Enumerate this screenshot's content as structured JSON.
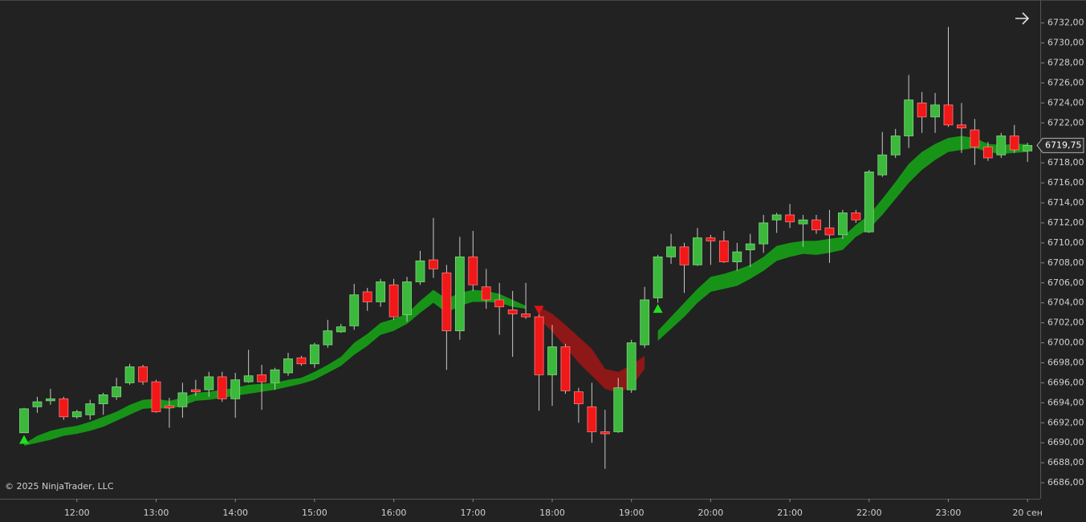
{
  "chart_data": {
    "type": "candlestick",
    "copyright": "© 2025 NinjaTrader, LLC",
    "categories": [
      null,
      null,
      null,
      null,
      "12:00",
      null,
      null,
      null,
      null,
      null,
      "13:00",
      null,
      null,
      null,
      null,
      null,
      "14:00",
      null,
      null,
      null,
      null,
      null,
      "15:00",
      null,
      null,
      null,
      null,
      null,
      "16:00",
      null,
      null,
      null,
      null,
      null,
      "17:00",
      null,
      null,
      null,
      null,
      null,
      "18:00",
      null,
      null,
      null,
      null,
      null,
      "19:00",
      null,
      null,
      null,
      null,
      null,
      "20:00",
      null,
      null,
      null,
      null,
      null,
      "21:00",
      null,
      null,
      null,
      null,
      null,
      "22:00",
      null,
      null,
      null,
      null,
      null,
      "23:00",
      null,
      null,
      null,
      null,
      null,
      "20 сен"
    ],
    "open": [
      6691,
      6693.6,
      6694.2,
      6694.4,
      6692.6,
      6692.8,
      6693.9,
      6694.6,
      6696,
      6697.6,
      6696.1,
      6693.7,
      6693.6,
      6695.3,
      6695.3,
      6696.6,
      6694.4,
      6696.1,
      6696.8,
      6696,
      6697,
      6698.5,
      6697.9,
      6699.8,
      6701.1,
      6701.7,
      6705.1,
      6704.1,
      6705.8,
      6702.8,
      6706.1,
      6708.3,
      6707,
      6701.2,
      6708.6,
      6705.6,
      6704.3,
      6703.3,
      6702.9,
      6702.6,
      6696.8,
      6699.6,
      6695.1,
      6693.6,
      6691.1,
      6691.1,
      6695.3,
      6699.8,
      6704.5,
      6708.6,
      6709.6,
      6707.8,
      6710.5,
      6710.2,
      6708.1,
      6709.3,
      6709.9,
      6712.3,
      6712.8,
      6711.9,
      6712.3,
      6711.5,
      6710.8,
      6713,
      6711.1,
      6716.8,
      6718.8,
      6720.7,
      6724,
      6722.6,
      6723.8,
      6721.8,
      6721.3,
      6719.6,
      6718.8,
      6720.7,
      6719.2
    ],
    "high": [
      6693.5,
      6694.6,
      6695.4,
      6694.6,
      6693.3,
      6694.3,
      6695,
      6696.5,
      6697.9,
      6697.8,
      6696.3,
      6694.5,
      6696,
      6696.3,
      6697.1,
      6697.1,
      6697,
      6699.3,
      6697.8,
      6697.5,
      6699,
      6698.7,
      6700,
      6702.3,
      6701.9,
      6705.9,
      6705.5,
      6706.4,
      6706.4,
      6706.6,
      6709.2,
      6712.5,
      6707.8,
      6710.6,
      6711.2,
      6707.4,
      6706,
      6705.2,
      6706,
      6702.9,
      6701.8,
      6699.9,
      6695.5,
      6696,
      6693.3,
      6696.5,
      6700.3,
      6705.6,
      6708.8,
      6710.9,
      6710,
      6711.5,
      6710.8,
      6711.2,
      6710,
      6710.9,
      6712.8,
      6713,
      6713.9,
      6712.8,
      6712.8,
      6713.3,
      6713.3,
      6713.3,
      6717.3,
      6721.1,
      6721.4,
      6726.8,
      6725.1,
      6725,
      6731.6,
      6724,
      6722.4,
      6720.1,
      6721,
      6721.8,
      6720
    ],
    "low": [
      6691,
      6693,
      6693.8,
      6692.3,
      6692.4,
      6692.3,
      6692.8,
      6694.3,
      6695.8,
      6695.8,
      6693,
      6691.5,
      6692.5,
      6694.7,
      6694.6,
      6694.1,
      6692.5,
      6696,
      6693.3,
      6695.3,
      6696.7,
      6697.7,
      6697.5,
      6699.5,
      6701,
      6701.3,
      6703.2,
      6703.6,
      6702.3,
      6702.1,
      6705.8,
      6706.5,
      6697.3,
      6700.3,
      6705.2,
      6703.4,
      6700.8,
      6698.6,
      6702.4,
      6693.2,
      6693.7,
      6694.9,
      6692,
      6690,
      6687.4,
      6691,
      6695,
      6699.5,
      6704,
      6707.9,
      6705,
      6707.7,
      6707.8,
      6708,
      6707.2,
      6707.6,
      6709,
      6711,
      6711.5,
      6709.6,
      6710.9,
      6708,
      6710.4,
      6712,
      6711,
      6716.6,
      6718.5,
      6719.5,
      6721,
      6721,
      6721.6,
      6719,
      6717.8,
      6718.2,
      6718.5,
      6719,
      6718.1
    ],
    "close": [
      6693.4,
      6694.1,
      6694.4,
      6692.6,
      6693.1,
      6693.9,
      6694.8,
      6695.6,
      6697.6,
      6696.1,
      6693.1,
      6693.5,
      6695,
      6695.1,
      6696.6,
      6694.4,
      6696.3,
      6696.7,
      6696.1,
      6697.3,
      6698.4,
      6697.9,
      6699.8,
      6701.2,
      6701.6,
      6704.8,
      6704.1,
      6706.1,
      6702.6,
      6706.1,
      6708.2,
      6707.4,
      6701.2,
      6708.6,
      6705.8,
      6704.3,
      6703.6,
      6702.9,
      6702.6,
      6696.8,
      6699.6,
      6695.2,
      6693.9,
      6691.1,
      6690.9,
      6695.5,
      6700,
      6704.3,
      6708.6,
      6709.6,
      6707.8,
      6710.5,
      6710.2,
      6708.1,
      6709.1,
      6709.9,
      6712,
      6712.8,
      6712.1,
      6712.3,
      6711.3,
      6710.8,
      6713,
      6712.3,
      6717.1,
      6718.8,
      6720.7,
      6724.3,
      6722.6,
      6723.8,
      6721.8,
      6721.5,
      6719.6,
      6718.5,
      6720.7,
      6719.3,
      6719.75
    ],
    "up_color": "#3cb83c",
    "down_color": "#f01818",
    "wick_color": "#c8c8c8",
    "band": {
      "upper": [
        6689.9,
        6690.7,
        6691.2,
        6691.5,
        6691.7,
        6692.1,
        6692.6,
        6693.1,
        6693.8,
        6694.3,
        6694.4,
        6694.2,
        6694.5,
        6695.0,
        6695.1,
        6695.3,
        6695.5,
        6695.8,
        6695.9,
        6696.0,
        6696.3,
        6696.5,
        6697.1,
        6697.8,
        6698.6,
        6700.0,
        6700.9,
        6702.0,
        6702.4,
        6702.9,
        6704.2,
        6705.3,
        6704.4,
        6705.0,
        6705.3,
        6705.2,
        6704.9,
        6704.3,
        6703.7,
        6703.6,
        6702.9,
        6701.8,
        6700.6,
        6699.4,
        6697.4,
        6697.1,
        6697.8,
        6698.7,
        6701.2,
        6702.6,
        6704.0,
        6705.4,
        6706.6,
        6706.9,
        6707.3,
        6707.8,
        6708.6,
        6709.7,
        6710.0,
        6710.2,
        6710.2,
        6710.4,
        6710.6,
        6711.8,
        6712.8,
        6714.4,
        6716.1,
        6717.9,
        6719.1,
        6719.9,
        6720.5,
        6720.7,
        6720.5,
        6719.9,
        6719.8,
        6719.9,
        6719.9
      ],
      "lower": [
        6689.7,
        6690.0,
        6690.3,
        6690.7,
        6690.9,
        6691.2,
        6691.6,
        6692.2,
        6692.8,
        6693.4,
        6693.5,
        6693.4,
        6693.7,
        6694.2,
        6694.3,
        6694.5,
        6694.7,
        6694.9,
        6695.1,
        6695.3,
        6695.6,
        6695.9,
        6696.3,
        6697.0,
        6697.7,
        6698.8,
        6699.7,
        6700.8,
        6701.2,
        6701.9,
        6703.0,
        6704.0,
        6703.0,
        6703.7,
        6704.1,
        6704.1,
        6704.0,
        6703.6,
        6703.4,
        6702.4,
        6701.1,
        6699.6,
        6698.0,
        6696.7,
        6695.4,
        6695.0,
        6695.6,
        6697.4,
        6700.2,
        6701.4,
        6702.6,
        6704.0,
        6705.1,
        6705.4,
        6705.7,
        6706.4,
        6707.2,
        6708.2,
        6708.6,
        6708.9,
        6708.8,
        6709.0,
        6709.3,
        6710.6,
        6711.4,
        6712.8,
        6714.4,
        6716.0,
        6717.3,
        6718.3,
        6719.1,
        6719.3,
        6719.5,
        6719.1,
        6718.9,
        6719.0,
        6719.1
      ],
      "colors": [
        "#179417",
        "#179417",
        "#179417",
        "#179417",
        "#179417",
        "#179417",
        "#179417",
        "#179417",
        "#179417",
        "#179417",
        "#179417",
        "#179417",
        "#179417",
        "#179417",
        "#179417",
        "#179417",
        "#179417",
        "#179417",
        "#179417",
        "#179417",
        "#179417",
        "#179417",
        "#179417",
        "#179417",
        "#179417",
        "#179417",
        "#179417",
        "#179417",
        "#179417",
        "#179417",
        "#179417",
        "#179417",
        "#179417",
        "#179417",
        "#179417",
        "#179417",
        "#179417",
        "#179417",
        "#179417",
        "#8e1717",
        "#8e1717",
        "#8e1717",
        "#8e1717",
        "#8e1717",
        "#8e1717",
        "#8e1717",
        "#8e1717",
        "#8e1717",
        "#179417",
        "#179417",
        "#179417",
        "#179417",
        "#179417",
        "#179417",
        "#179417",
        "#179417",
        "#179417",
        "#179417",
        "#179417",
        "#179417",
        "#179417",
        "#179417",
        "#179417",
        "#179417",
        "#179417",
        "#179417",
        "#179417",
        "#179417",
        "#179417",
        "#179417",
        "#179417",
        "#179417",
        "#179417",
        "#179417",
        "#179417",
        "#179417",
        "#179417"
      ]
    },
    "signals": [
      {
        "index": 0,
        "value": 6690.3,
        "direction": "up"
      },
      {
        "index": 39,
        "value": 6703.3,
        "direction": "down"
      },
      {
        "index": 48,
        "value": 6703.4,
        "direction": "up"
      }
    ],
    "signal_colors": {
      "up": "#1fe01f",
      "down": "#e01414"
    },
    "last_price": {
      "value": 6719.75,
      "label": "6719,75"
    },
    "ylim": [
      6684.4,
      6734.3
    ],
    "yticks": [
      {
        "value": 6686,
        "label": "6686,00"
      },
      {
        "value": 6688,
        "label": "6688,00"
      },
      {
        "value": 6690,
        "label": "6690,00"
      },
      {
        "value": 6692,
        "label": "6692,00"
      },
      {
        "value": 6694,
        "label": "6694,00"
      },
      {
        "value": 6696,
        "label": "6696,00"
      },
      {
        "value": 6698,
        "label": "6698,00"
      },
      {
        "value": 6700,
        "label": "6700,00"
      },
      {
        "value": 6702,
        "label": "6702,00"
      },
      {
        "value": 6704,
        "label": "6704,00"
      },
      {
        "value": 6706,
        "label": "6706,00"
      },
      {
        "value": 6708,
        "label": "6708,00"
      },
      {
        "value": 6710,
        "label": "6710,00"
      },
      {
        "value": 6712,
        "label": "6712,00"
      },
      {
        "value": 6714,
        "label": "6714,00"
      },
      {
        "value": 6716,
        "label": "6716,00"
      },
      {
        "value": 6718,
        "label": "6718,00"
      },
      {
        "value": 6720,
        "label": "6720,00"
      },
      {
        "value": 6722,
        "label": "6722,00"
      },
      {
        "value": 6724,
        "label": "6724,00"
      },
      {
        "value": 6726,
        "label": "6726,00"
      },
      {
        "value": 6728,
        "label": "6728,00"
      },
      {
        "value": 6730,
        "label": "6730,00"
      },
      {
        "value": 6732,
        "label": "6732,00"
      }
    ]
  }
}
